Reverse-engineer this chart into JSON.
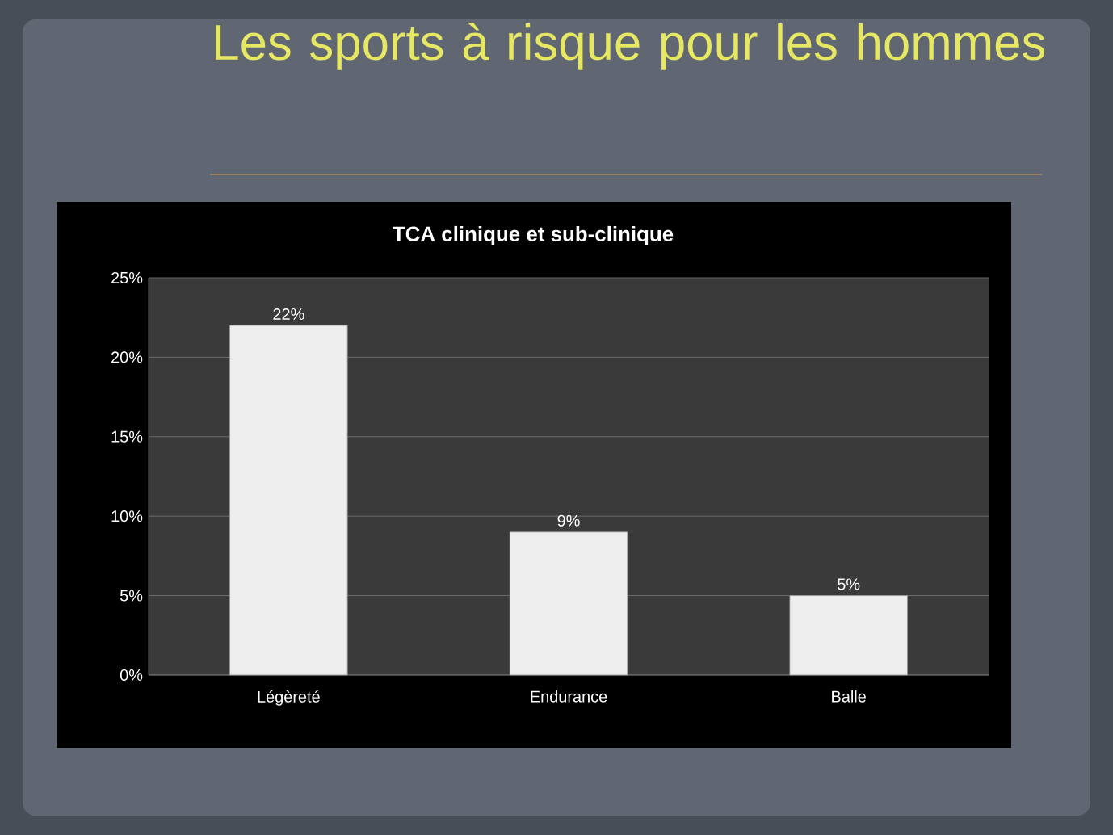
{
  "chart_data": {
    "type": "bar",
    "title": "Les sports à risque pour les hommes",
    "subtitle": "TCA clinique et sub-clinique",
    "categories": [
      "Légèreté",
      "Endurance",
      "Balle"
    ],
    "values": [
      22,
      9,
      5
    ],
    "color": "#eeeeee",
    "value_labels": [
      "22%",
      "9%",
      "5%"
    ],
    "ylim": [
      0,
      25
    ],
    "yticks": [
      {
        "value": 0,
        "label": "0%"
      },
      {
        "value": 5,
        "label": "5%"
      },
      {
        "value": 10,
        "label": "10%"
      },
      {
        "value": 15,
        "label": "15%"
      },
      {
        "value": 20,
        "label": "20%"
      },
      {
        "value": 25,
        "label": "25%"
      }
    ],
    "grid": "y"
  }
}
